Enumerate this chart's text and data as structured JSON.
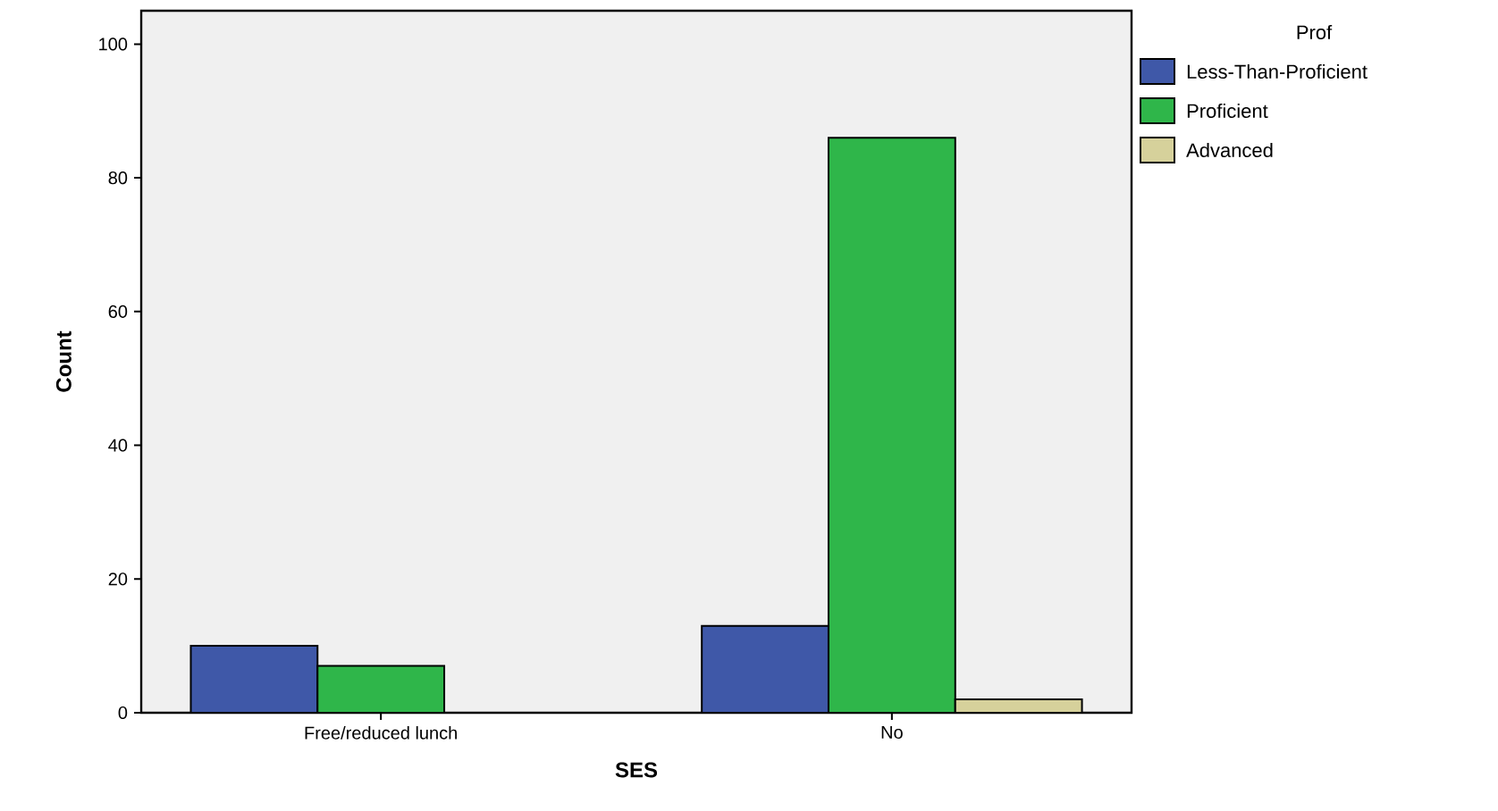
{
  "chart_data": {
    "type": "bar",
    "xlabel": "SES",
    "ylabel": "Count",
    "legend_title": "Prof",
    "categories": [
      "Free/reduced lunch",
      "No"
    ],
    "series": [
      {
        "name": "Less-Than-Proficient",
        "color": "#3f58a8",
        "values": [
          10,
          13
        ]
      },
      {
        "name": "Proficient",
        "color": "#2fb64a",
        "values": [
          7,
          86
        ]
      },
      {
        "name": "Advanced",
        "color": "#d6d19b",
        "values": [
          null,
          2
        ]
      }
    ],
    "ylim": [
      0,
      105
    ],
    "yticks": [
      0,
      20,
      40,
      60,
      80,
      100
    ],
    "grid": false,
    "legend": "top right"
  }
}
